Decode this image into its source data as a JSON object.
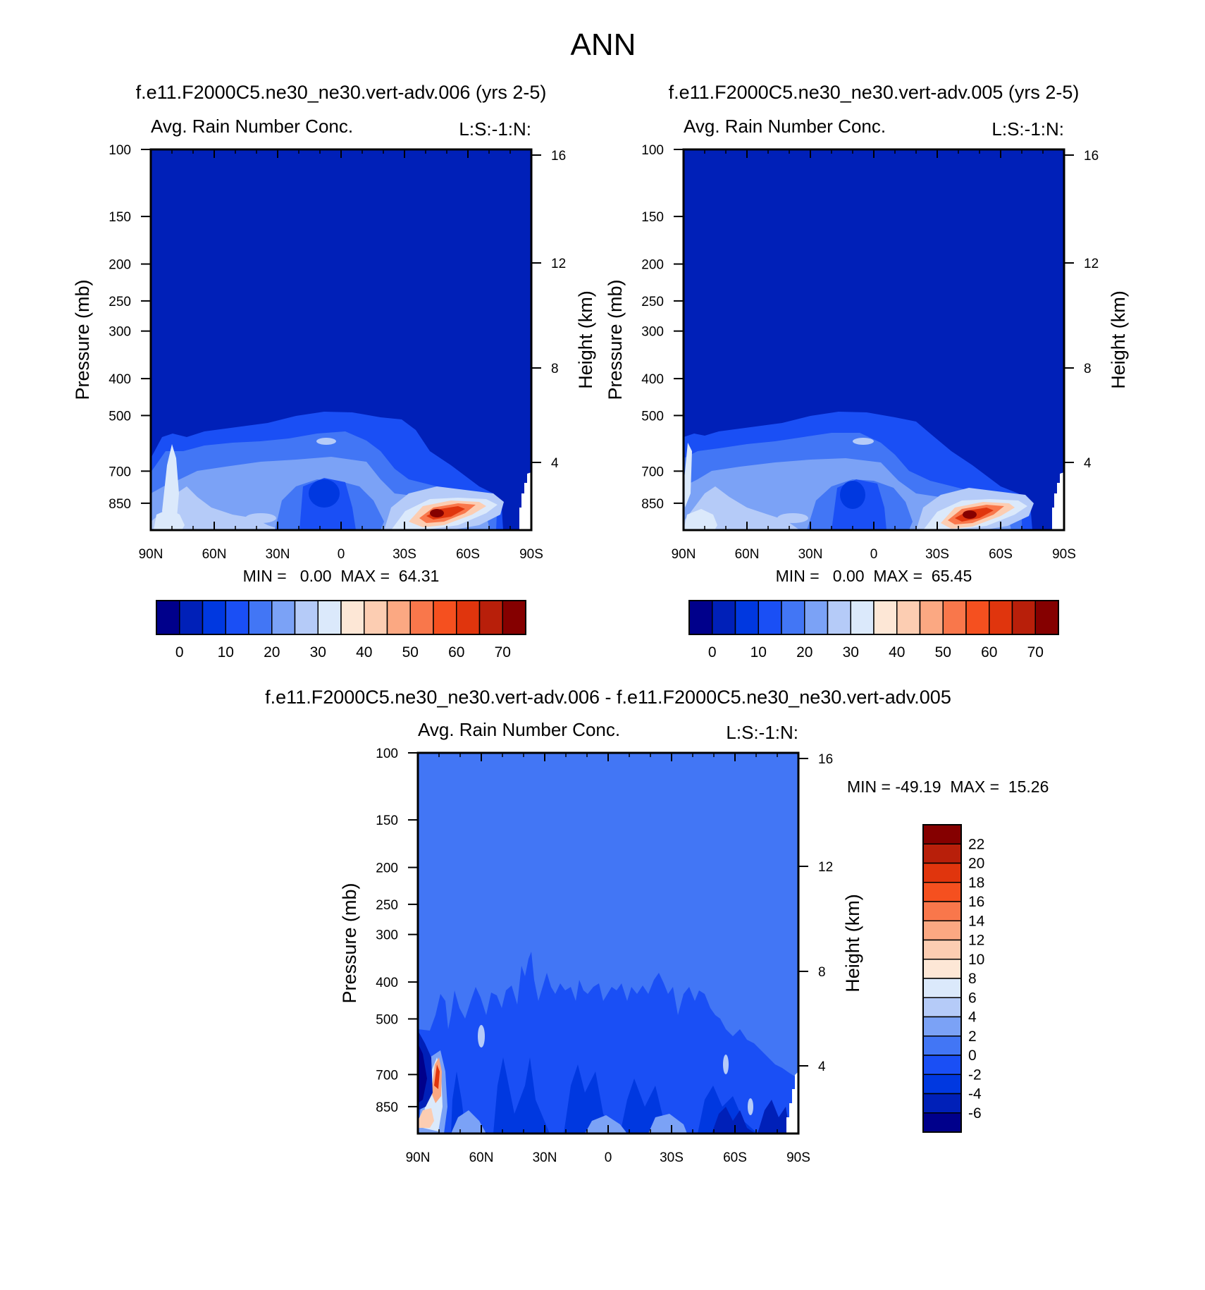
{
  "figure_title": "ANN",
  "palettes": {
    "abs": [
      "#00008b",
      "#0020b8",
      "#0038e0",
      "#1a4ff5",
      "#4276f5",
      "#7ba2f6",
      "#b5cbf8",
      "#dbe9fb",
      "#fde7d6",
      "#fccdb2",
      "#fba882",
      "#f9774b",
      "#f5501f",
      "#e0350d",
      "#b81f0a",
      "#850000"
    ],
    "diff": [
      "#00008b",
      "#0020b8",
      "#0038e0",
      "#1a4ff5",
      "#4276f5",
      "#7ba2f6",
      "#b5cbf8",
      "#dbe9fb",
      "#fde7d6",
      "#fccdb2",
      "#fba882",
      "#f9774b",
      "#f5501f",
      "#e0350d",
      "#b81f0a",
      "#850000"
    ]
  },
  "chart_data": [
    {
      "type": "heatmap",
      "title": "f.e11.F2000C5.ne30_ne30.vert-adv.006 (yrs 2-5)",
      "left_title": "Avg. Rain Number Conc.",
      "right_title": "L:S:-1:N:",
      "ylabel": "Pressure (mb)",
      "y2label": "Height (km)",
      "xticks": [
        "90N",
        "60N",
        "30N",
        "0",
        "30S",
        "60S",
        "90S"
      ],
      "yticks": [
        "100",
        "150",
        "200",
        "250",
        "300",
        "400",
        "500",
        "700",
        "850"
      ],
      "y2ticks": [
        "16",
        "12",
        "8",
        "4"
      ],
      "stats": "MIN =   0.00  MAX =  64.31",
      "min": 0.0,
      "max": 64.31,
      "colorbar_labels": [
        "0",
        "10",
        "20",
        "30",
        "40",
        "50",
        "60",
        "70"
      ],
      "features": [
        {
          "lat": -42,
          "p": 860,
          "value": 64
        },
        {
          "lat": 80,
          "p": 620,
          "value": 40
        },
        {
          "lat": 75,
          "p": 860,
          "value": 35
        }
      ]
    },
    {
      "type": "heatmap",
      "title": "f.e11.F2000C5.ne30_ne30.vert-adv.005 (yrs 2-5)",
      "left_title": "Avg. Rain Number Conc.",
      "right_title": "L:S:-1:N:",
      "ylabel": "Pressure (mb)",
      "y2label": "Height (km)",
      "xticks": [
        "90N",
        "60N",
        "30N",
        "0",
        "30S",
        "60S",
        "90S"
      ],
      "yticks": [
        "100",
        "150",
        "200",
        "250",
        "300",
        "400",
        "500",
        "700",
        "850"
      ],
      "y2ticks": [
        "16",
        "12",
        "8",
        "4"
      ],
      "stats": "MIN =   0.00  MAX =  65.45",
      "min": 0.0,
      "max": 65.45,
      "colorbar_labels": [
        "0",
        "10",
        "20",
        "30",
        "40",
        "50",
        "60",
        "70"
      ],
      "features": [
        {
          "lat": -45,
          "p": 860,
          "value": 65
        },
        {
          "lat": 75,
          "p": 860,
          "value": 30
        }
      ]
    },
    {
      "type": "heatmap",
      "title": "f.e11.F2000C5.ne30_ne30.vert-adv.006 - f.e11.F2000C5.ne30_ne30.vert-adv.005",
      "left_title": "Avg. Rain Number Conc.",
      "right_title": "L:S:-1:N:",
      "ylabel": "Pressure (mb)",
      "y2label": "Height (km)",
      "xticks": [
        "90N",
        "60N",
        "30N",
        "0",
        "30S",
        "60S",
        "90S"
      ],
      "yticks": [
        "100",
        "150",
        "200",
        "250",
        "300",
        "400",
        "500",
        "700",
        "850"
      ],
      "y2ticks": [
        "16",
        "12",
        "8",
        "4"
      ],
      "stats": "MIN = -49.19  MAX =  15.26",
      "min": -49.19,
      "max": 15.26,
      "colorbar_labels": [
        "22",
        "20",
        "18",
        "16",
        "14",
        "12",
        "10",
        "8",
        "6",
        "4",
        "2",
        "0",
        "-2",
        "-4",
        "-6"
      ],
      "features": [
        {
          "lat": 84,
          "p": 620,
          "value": 18
        },
        {
          "lat": 89,
          "p": 620,
          "value": -49
        }
      ]
    }
  ]
}
